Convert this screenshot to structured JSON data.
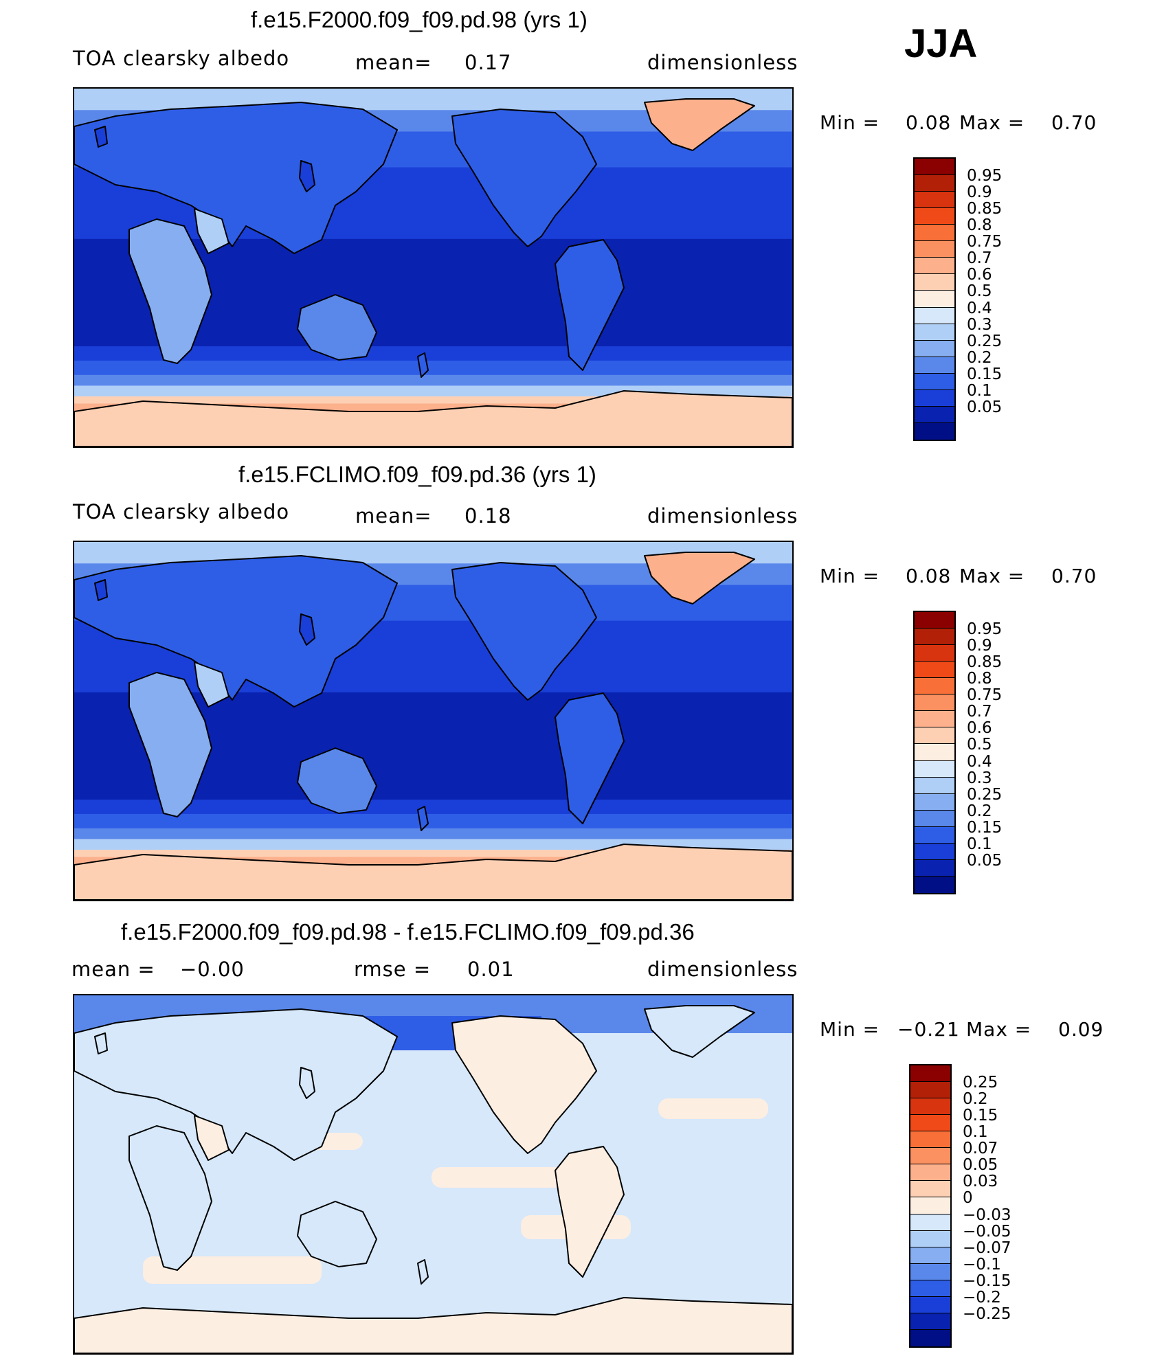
{
  "season": "JJA",
  "panels": [
    {
      "title": "f.e15.F2000.f09_f09.pd.98 (yrs 1)",
      "left_label": "TOA clearsky albedo",
      "center_label": "mean=",
      "center_value": "0.17",
      "right_label": "dimensionless",
      "min_label": "Min =",
      "min_value": "0.08",
      "max_label": "Max =",
      "max_value": "0.70",
      "colorbar_labels": [
        "0.95",
        "0.9",
        "0.85",
        "0.8",
        "0.75",
        "0.7",
        "0.6",
        "0.5",
        "0.4",
        "0.3",
        "0.25",
        "0.2",
        "0.15",
        "0.1",
        "0.05"
      ],
      "colorbar_colors": [
        "#8b0000",
        "#b22008",
        "#d93410",
        "#f04a18",
        "#f87038",
        "#fb9060",
        "#fcb08c",
        "#fdd0b4",
        "#fdeee2",
        "#d6e8fa",
        "#b0cff7",
        "#86aef0",
        "#5a88ea",
        "#2f5ee6",
        "#1a3fd8",
        "#0a22b0",
        "#000f86"
      ],
      "map_field": "albedo"
    },
    {
      "title": "f.e15.FCLIMO.f09_f09.pd.36 (yrs 1)",
      "left_label": "TOA clearsky albedo",
      "center_label": "mean=",
      "center_value": "0.18",
      "right_label": "dimensionless",
      "min_label": "Min =",
      "min_value": "0.08",
      "max_label": "Max =",
      "max_value": "0.70",
      "colorbar_labels": [
        "0.95",
        "0.9",
        "0.85",
        "0.8",
        "0.75",
        "0.7",
        "0.6",
        "0.5",
        "0.4",
        "0.3",
        "0.25",
        "0.2",
        "0.15",
        "0.1",
        "0.05"
      ],
      "colorbar_colors": [
        "#8b0000",
        "#b22008",
        "#d93410",
        "#f04a18",
        "#f87038",
        "#fb9060",
        "#fcb08c",
        "#fdd0b4",
        "#fdeee2",
        "#d6e8fa",
        "#b0cff7",
        "#86aef0",
        "#5a88ea",
        "#2f5ee6",
        "#1a3fd8",
        "#0a22b0",
        "#000f86"
      ],
      "map_field": "albedo"
    },
    {
      "title": "f.e15.F2000.f09_f09.pd.98 - f.e15.FCLIMO.f09_f09.pd.36",
      "left_label": "mean =",
      "left_value": "−0.00",
      "center_label": "rmse =",
      "center_value": "0.01",
      "right_label": "dimensionless",
      "min_label": "Min =",
      "min_value": "−0.21",
      "max_label": "Max =",
      "max_value": "0.09",
      "colorbar_labels": [
        "0.25",
        "0.2",
        "0.15",
        "0.1",
        "0.07",
        "0.05",
        "0.03",
        "0",
        "−0.03",
        "−0.05",
        "−0.07",
        "−0.1",
        "−0.15",
        "−0.2",
        "−0.25"
      ],
      "colorbar_colors": [
        "#8b0000",
        "#b22008",
        "#d93410",
        "#f04a18",
        "#f87038",
        "#fb9060",
        "#fcb08c",
        "#fdd0b4",
        "#fdeee2",
        "#d6e8fa",
        "#b0cff7",
        "#86aef0",
        "#5a88ea",
        "#2f5ee6",
        "#1a3fd8",
        "#0a22b0",
        "#000f86"
      ],
      "map_field": "difference"
    }
  ]
}
